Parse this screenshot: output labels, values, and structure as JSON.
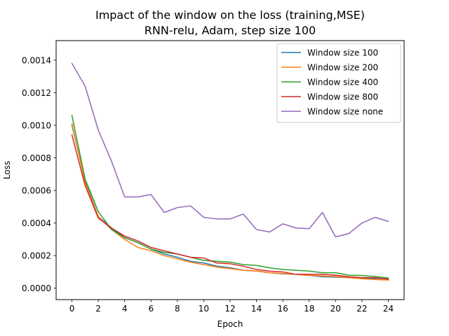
{
  "chart_data": {
    "type": "line",
    "title": "Impact of the window on the loss (training,MSE)",
    "subtitle": "RNN-relu, Adam, step size 100",
    "xlabel": "Epoch",
    "ylabel": "Loss",
    "xlim": [
      -1.2,
      25.2
    ],
    "ylim": [
      -7e-05,
      0.00152
    ],
    "xticks": [
      0,
      2,
      4,
      6,
      8,
      10,
      12,
      14,
      16,
      18,
      20,
      22,
      24
    ],
    "yticks": [
      0.0,
      0.0002,
      0.0004,
      0.0006,
      0.0008,
      0.001,
      0.0012,
      0.0014
    ],
    "ytick_labels": [
      "0.0000",
      "0.0002",
      "0.0004",
      "0.0006",
      "0.0008",
      "0.0010",
      "0.0012",
      "0.0014"
    ],
    "grid": false,
    "legend_position": "top-right",
    "x": [
      0,
      1,
      2,
      3,
      4,
      5,
      6,
      7,
      8,
      9,
      10,
      11,
      12,
      13,
      14,
      15,
      16,
      17,
      18,
      19,
      20,
      21,
      22,
      23,
      24
    ],
    "series": [
      {
        "name": "Window size 100",
        "color": "#1f77b4",
        "values": [
          0.001,
          0.00066,
          0.00044,
          0.00037,
          0.00031,
          0.00028,
          0.00024,
          0.00021,
          0.00019,
          0.000165,
          0.000155,
          0.000135,
          0.000125,
          0.00011,
          0.000105,
          9.5e-05,
          8.8e-05,
          8.5e-05,
          7.8e-05,
          7e-05,
          6.8e-05,
          6.5e-05,
          6.2e-05,
          6e-05,
          5.8e-05
        ]
      },
      {
        "name": "Window size 200",
        "color": "#ff7f0e",
        "values": [
          0.00101,
          0.00065,
          0.00044,
          0.00036,
          0.0003,
          0.00025,
          0.00023,
          0.0002,
          0.00018,
          0.00016,
          0.000145,
          0.00013,
          0.00012,
          0.00011,
          0.000105,
          9.5e-05,
          9e-05,
          8.5e-05,
          7.8e-05,
          7.5e-05,
          7.2e-05,
          6.5e-05,
          5.8e-05,
          5.3e-05,
          5e-05
        ]
      },
      {
        "name": "Window size 400",
        "color": "#2ca02c",
        "values": [
          0.00106,
          0.00067,
          0.00047,
          0.00036,
          0.00031,
          0.00028,
          0.00024,
          0.00022,
          0.00021,
          0.00019,
          0.00017,
          0.000165,
          0.00016,
          0.000145,
          0.00014,
          0.000125,
          0.000115,
          0.00011,
          0.000105,
          9.5e-05,
          9.5e-05,
          8e-05,
          7.8e-05,
          7.2e-05,
          6.2e-05
        ]
      },
      {
        "name": "Window size 800",
        "color": "#d62728",
        "values": [
          0.00094,
          0.00063,
          0.00043,
          0.00037,
          0.00032,
          0.00029,
          0.00025,
          0.00023,
          0.00021,
          0.00019,
          0.000185,
          0.000155,
          0.00015,
          0.000135,
          0.000115,
          0.000105,
          0.0001,
          8.5e-05,
          8.5e-05,
          8.5e-05,
          8e-05,
          7e-05,
          6.5e-05,
          6.5e-05,
          5.5e-05
        ]
      },
      {
        "name": "Window size none",
        "color": "#9467bd",
        "values": [
          0.00138,
          0.00124,
          0.00097,
          0.00078,
          0.00056,
          0.00056,
          0.000575,
          0.000465,
          0.000495,
          0.000505,
          0.000435,
          0.000425,
          0.000425,
          0.000455,
          0.00036,
          0.000345,
          0.000395,
          0.00037,
          0.000365,
          0.000465,
          0.000315,
          0.000335,
          0.0004,
          0.000435,
          0.00041
        ]
      }
    ]
  }
}
